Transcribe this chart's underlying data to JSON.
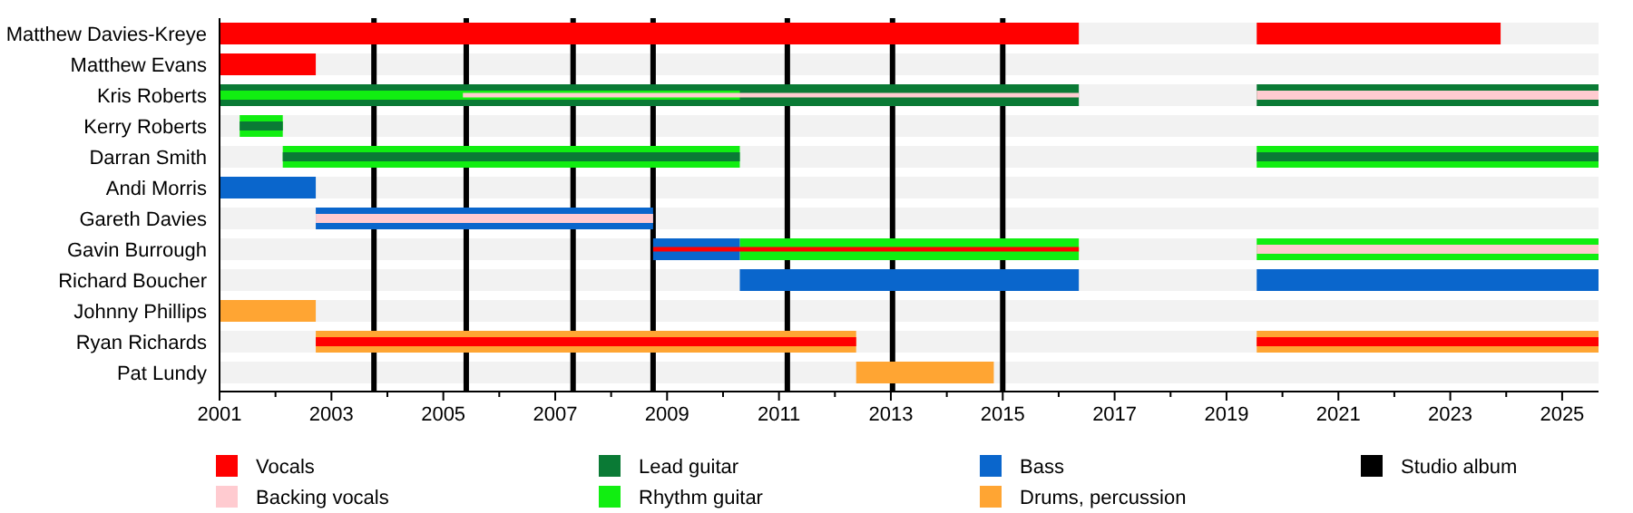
{
  "chart_data": {
    "type": "bar",
    "orientation": "horizontal",
    "categories": [
      "Matthew Davies-Kreye",
      "Matthew Evans",
      "Kris Roberts",
      "Kerry Roberts",
      "Darran Smith",
      "Andi Morris",
      "Gareth Davies",
      "Gavin Burrough",
      "Richard Boucher",
      "Johnny Phillips",
      "Ryan Richards",
      "Pat Lundy"
    ],
    "series": [
      {
        "name": "Vocals",
        "color": "#ff0000",
        "values": [
          15.36,
          1.72,
          null,
          null,
          null,
          null,
          null,
          null,
          null,
          null,
          null,
          null
        ],
        "base": [
          2001,
          2001,
          null,
          null,
          null,
          null,
          null,
          null,
          null,
          null,
          null,
          null
        ]
      },
      {
        "name": "Lead guitar",
        "color": "#0a7a35",
        "values": [
          null,
          null,
          15.36,
          null,
          null,
          null,
          null,
          null,
          null,
          null,
          null,
          null
        ],
        "base": [
          null,
          null,
          2001,
          null,
          null,
          null,
          null,
          null,
          null,
          null,
          null,
          null
        ]
      },
      {
        "name": "Rhythm guitar",
        "color": "#11ee11",
        "values": [
          null,
          null,
          9.3,
          0.77,
          8.17,
          null,
          null,
          6.06,
          null,
          null,
          null,
          null
        ],
        "base": [
          null,
          null,
          2001,
          2001.36,
          2002.13,
          null,
          null,
          2010.3,
          null,
          null,
          null,
          null
        ]
      },
      {
        "name": "Bass",
        "color": "#0a66cc",
        "values": [
          null,
          null,
          null,
          null,
          null,
          1.72,
          6.03,
          1.55,
          6.06,
          null,
          null,
          null
        ],
        "base": [
          null,
          null,
          null,
          null,
          null,
          2001,
          2002.72,
          2008.75,
          2010.3,
          null,
          null,
          null
        ]
      },
      {
        "name": "Drums, percussion",
        "color": "#ffa533",
        "values": [
          null,
          null,
          null,
          null,
          null,
          null,
          null,
          null,
          null,
          1.72,
          9.66,
          2.46
        ],
        "base": [
          null,
          null,
          null,
          null,
          null,
          null,
          null,
          null,
          null,
          2001,
          2002.72,
          2012.38
        ]
      },
      {
        "name": "Backing vocals",
        "color": "#ffcbd0",
        "values": [
          null,
          null,
          11.01,
          null,
          null,
          null,
          6.03,
          null,
          null,
          null,
          null,
          null
        ],
        "base": [
          null,
          null,
          2005.35,
          null,
          null,
          null,
          2002.72,
          null,
          null,
          null,
          null,
          null
        ]
      },
      {
        "color": "#0a7a35",
        "values": [
          null,
          null,
          null,
          0.77,
          8.17,
          null,
          null,
          null,
          null,
          null,
          null,
          null
        ],
        "base": [
          null,
          null,
          null,
          2001.36,
          2002.13,
          null,
          null,
          null,
          null,
          null,
          null,
          null
        ]
      },
      {
        "color": "#ff0000",
        "values": [
          null,
          null,
          null,
          null,
          null,
          null,
          null,
          7.61,
          null,
          null,
          9.66,
          null
        ],
        "base": [
          null,
          null,
          null,
          null,
          null,
          null,
          null,
          2008.75,
          null,
          null,
          2002.72,
          null
        ]
      },
      {
        "color": "#ff0000",
        "values": [
          4.36,
          null,
          null,
          null,
          null,
          null,
          null,
          null,
          null,
          null,
          null,
          null
        ],
        "base": [
          2019.54,
          null,
          null,
          null,
          null,
          null,
          null,
          null,
          null,
          null,
          null,
          null
        ]
      },
      {
        "color": "#0a7a35",
        "values": [
          null,
          null,
          6.11,
          null,
          null,
          null,
          null,
          null,
          null,
          null,
          null,
          null
        ],
        "base": [
          null,
          null,
          2019.54,
          null,
          null,
          null,
          null,
          null,
          null,
          null,
          null,
          null
        ]
      },
      {
        "color": "#11ee11",
        "values": [
          null,
          null,
          null,
          null,
          6.11,
          null,
          null,
          6.11,
          null,
          null,
          null,
          null
        ],
        "base": [
          null,
          null,
          null,
          null,
          2019.54,
          null,
          null,
          2019.54,
          null,
          null,
          null,
          null
        ]
      },
      {
        "color": "#0a66cc",
        "values": [
          null,
          null,
          null,
          null,
          null,
          null,
          null,
          null,
          6.11,
          null,
          null,
          null
        ],
        "base": [
          null,
          null,
          null,
          null,
          null,
          null,
          null,
          null,
          2019.54,
          null,
          null,
          null
        ]
      },
      {
        "color": "#ffa533",
        "values": [
          null,
          null,
          null,
          null,
          null,
          null,
          null,
          null,
          null,
          null,
          6.11,
          null
        ],
        "base": [
          null,
          null,
          null,
          null,
          null,
          null,
          null,
          null,
          null,
          null,
          2019.54,
          null
        ]
      },
      {
        "color": "#ffcbd0",
        "values": [
          null,
          null,
          6.11,
          null,
          null,
          null,
          null,
          6.11,
          null,
          null,
          null,
          null
        ],
        "base": [
          null,
          null,
          2019.54,
          null,
          null,
          null,
          null,
          2019.54,
          null,
          null,
          null,
          null
        ]
      },
      {
        "color": "#0a7a35",
        "values": [
          null,
          null,
          null,
          null,
          6.11,
          null,
          null,
          null,
          null,
          null,
          null,
          null
        ],
        "base": [
          null,
          null,
          null,
          null,
          2019.54,
          null,
          null,
          null,
          null,
          null,
          null,
          null
        ]
      },
      {
        "color": "#ff0000",
        "values": [
          null,
          null,
          null,
          null,
          null,
          null,
          null,
          null,
          null,
          null,
          6.11,
          null
        ],
        "base": [
          null,
          null,
          null,
          null,
          null,
          null,
          null,
          null,
          null,
          null,
          2019.54,
          null
        ]
      }
    ],
    "xlim": [
      2001,
      2025.65
    ],
    "xticks": [
      2001,
      {
        "value": 2002,
        "label": null
      },
      2003,
      {
        "value": 2004,
        "label": null
      },
      2005,
      {
        "value": 2006,
        "label": null
      },
      2007,
      {
        "value": 2008,
        "label": null
      },
      2009,
      {
        "value": 2010,
        "label": null
      },
      2011,
      {
        "value": 2012,
        "label": null
      },
      2013,
      {
        "value": 2014,
        "label": null
      },
      2015,
      {
        "value": 2016,
        "label": null
      },
      2017,
      {
        "value": 2018,
        "label": null
      },
      2019,
      {
        "value": 2020,
        "label": null
      },
      2021,
      {
        "value": 2022,
        "label": null
      },
      2023,
      {
        "value": 2024,
        "label": null
      },
      2025
    ],
    "ref_lines": [
      {
        "axis": "x",
        "value": 2003.76,
        "label": "Studio album",
        "color": "#000000"
      },
      {
        "axis": "x",
        "value": 2005.41,
        "color": "#000000"
      },
      {
        "axis": "x",
        "value": 2007.32,
        "color": "#000000"
      },
      {
        "axis": "x",
        "value": 2008.75,
        "color": "#000000"
      },
      {
        "axis": "x",
        "value": 2011.15,
        "color": "#000000"
      },
      {
        "axis": "x",
        "value": 2013.03,
        "color": "#000000"
      },
      {
        "axis": "x",
        "value": 2015.0,
        "color": "#000000"
      }
    ],
    "legend": "bottom"
  }
}
